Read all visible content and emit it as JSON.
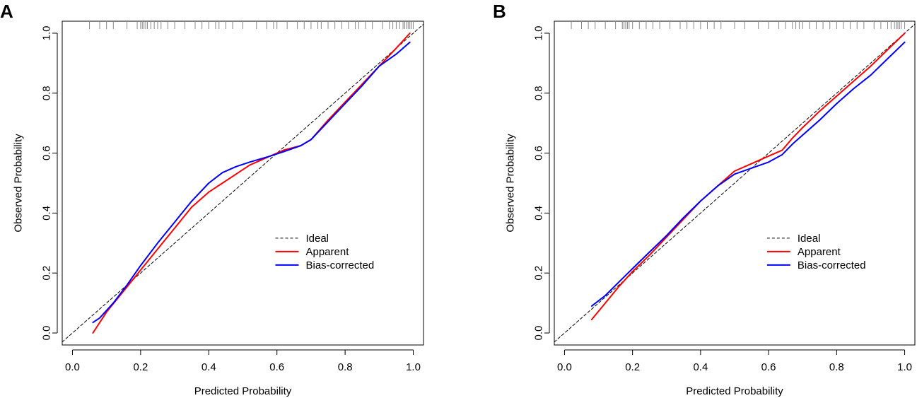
{
  "chart_data": [
    {
      "type": "line",
      "panel_label": "A",
      "xlabel": "Predicted Probability",
      "ylabel": "Observed Probability",
      "xlim": [
        -0.03,
        1.03
      ],
      "ylim": [
        -0.04,
        1.04
      ],
      "xticks": [
        "0.0",
        "0.2",
        "0.4",
        "0.6",
        "0.8",
        "1.0"
      ],
      "yticks": [
        "0.0",
        "0.2",
        "0.4",
        "0.6",
        "0.8",
        "1.0"
      ],
      "legend_position": "right-center",
      "series": [
        {
          "name": "Ideal",
          "style": "dashed",
          "color": "#000000",
          "x": [
            -0.03,
            1.03
          ],
          "y": [
            -0.03,
            1.03
          ]
        },
        {
          "name": "Apparent",
          "style": "solid",
          "color": "#ff0000",
          "x": [
            0.06,
            0.1,
            0.15,
            0.2,
            0.25,
            0.3,
            0.35,
            0.4,
            0.44,
            0.48,
            0.52,
            0.55,
            0.58,
            0.62,
            0.67,
            0.7,
            0.75,
            0.8,
            0.85,
            0.9,
            0.95,
            0.99
          ],
          "y": [
            0.0,
            0.07,
            0.14,
            0.21,
            0.28,
            0.35,
            0.42,
            0.47,
            0.5,
            0.53,
            0.56,
            0.575,
            0.59,
            0.61,
            0.625,
            0.645,
            0.71,
            0.77,
            0.83,
            0.89,
            0.95,
            1.0
          ]
        },
        {
          "name": "Bias-corrected",
          "style": "solid",
          "color": "#0000ff",
          "x": [
            0.06,
            0.08,
            0.12,
            0.16,
            0.2,
            0.25,
            0.3,
            0.35,
            0.4,
            0.44,
            0.48,
            0.52,
            0.55,
            0.58,
            0.62,
            0.67,
            0.7,
            0.75,
            0.8,
            0.85,
            0.9,
            0.95,
            0.99
          ],
          "y": [
            0.035,
            0.05,
            0.1,
            0.16,
            0.225,
            0.3,
            0.37,
            0.44,
            0.5,
            0.535,
            0.555,
            0.57,
            0.58,
            0.59,
            0.605,
            0.625,
            0.645,
            0.705,
            0.765,
            0.825,
            0.89,
            0.93,
            0.97
          ]
        }
      ],
      "rug": [
        0.05,
        0.08,
        0.1,
        0.12,
        0.16,
        0.19,
        0.2,
        0.205,
        0.21,
        0.215,
        0.22,
        0.23,
        0.24,
        0.25,
        0.26,
        0.28,
        0.3,
        0.33,
        0.36,
        0.38,
        0.4,
        0.42,
        0.43,
        0.45,
        0.47,
        0.5,
        0.54,
        0.57,
        0.59,
        0.6,
        0.63,
        0.66,
        0.68,
        0.7,
        0.72,
        0.73,
        0.75,
        0.77,
        0.79,
        0.81,
        0.83,
        0.84,
        0.86,
        0.88,
        0.91,
        0.93,
        0.94,
        0.95,
        0.96,
        0.97,
        0.975,
        0.98,
        0.985,
        0.99,
        0.995,
        1.0
      ]
    },
    {
      "type": "line",
      "panel_label": "B",
      "xlabel": "Predicted Probability",
      "ylabel": "Observed Probability",
      "xlim": [
        -0.03,
        1.03
      ],
      "ylim": [
        -0.04,
        1.04
      ],
      "xticks": [
        "0.0",
        "0.2",
        "0.4",
        "0.6",
        "0.8",
        "1.0"
      ],
      "yticks": [
        "0.0",
        "0.2",
        "0.4",
        "0.6",
        "0.8",
        "1.0"
      ],
      "legend_position": "right-center",
      "series": [
        {
          "name": "Ideal",
          "style": "dashed",
          "color": "#000000",
          "x": [
            -0.03,
            1.03
          ],
          "y": [
            -0.03,
            1.03
          ]
        },
        {
          "name": "Apparent",
          "style": "solid",
          "color": "#ff0000",
          "x": [
            0.08,
            0.12,
            0.16,
            0.2,
            0.25,
            0.3,
            0.35,
            0.4,
            0.45,
            0.5,
            0.55,
            0.6,
            0.64,
            0.67,
            0.7,
            0.75,
            0.8,
            0.85,
            0.9,
            0.95,
            1.0
          ],
          "y": [
            0.045,
            0.1,
            0.155,
            0.205,
            0.26,
            0.32,
            0.38,
            0.44,
            0.49,
            0.54,
            0.565,
            0.59,
            0.61,
            0.65,
            0.685,
            0.74,
            0.79,
            0.84,
            0.89,
            0.945,
            1.0
          ]
        },
        {
          "name": "Bias-corrected",
          "style": "solid",
          "color": "#0000ff",
          "x": [
            0.08,
            0.12,
            0.16,
            0.2,
            0.25,
            0.3,
            0.35,
            0.4,
            0.45,
            0.5,
            0.55,
            0.6,
            0.64,
            0.67,
            0.7,
            0.75,
            0.8,
            0.85,
            0.9,
            0.95,
            1.0
          ],
          "y": [
            0.09,
            0.125,
            0.17,
            0.215,
            0.27,
            0.325,
            0.385,
            0.44,
            0.49,
            0.53,
            0.55,
            0.57,
            0.595,
            0.63,
            0.66,
            0.71,
            0.765,
            0.815,
            0.86,
            0.915,
            0.97
          ]
        }
      ],
      "rug": [
        0.02,
        0.05,
        0.07,
        0.09,
        0.12,
        0.15,
        0.17,
        0.175,
        0.18,
        0.185,
        0.19,
        0.2,
        0.22,
        0.24,
        0.26,
        0.28,
        0.31,
        0.34,
        0.36,
        0.38,
        0.4,
        0.42,
        0.44,
        0.46,
        0.5,
        0.53,
        0.57,
        0.6,
        0.63,
        0.65,
        0.67,
        0.68,
        0.69,
        0.7,
        0.72,
        0.74,
        0.76,
        0.78,
        0.8,
        0.82,
        0.84,
        0.86,
        0.88,
        0.91,
        0.93,
        0.95,
        0.96,
        0.97,
        0.975,
        0.98,
        0.985,
        0.99,
        1.0
      ]
    }
  ]
}
